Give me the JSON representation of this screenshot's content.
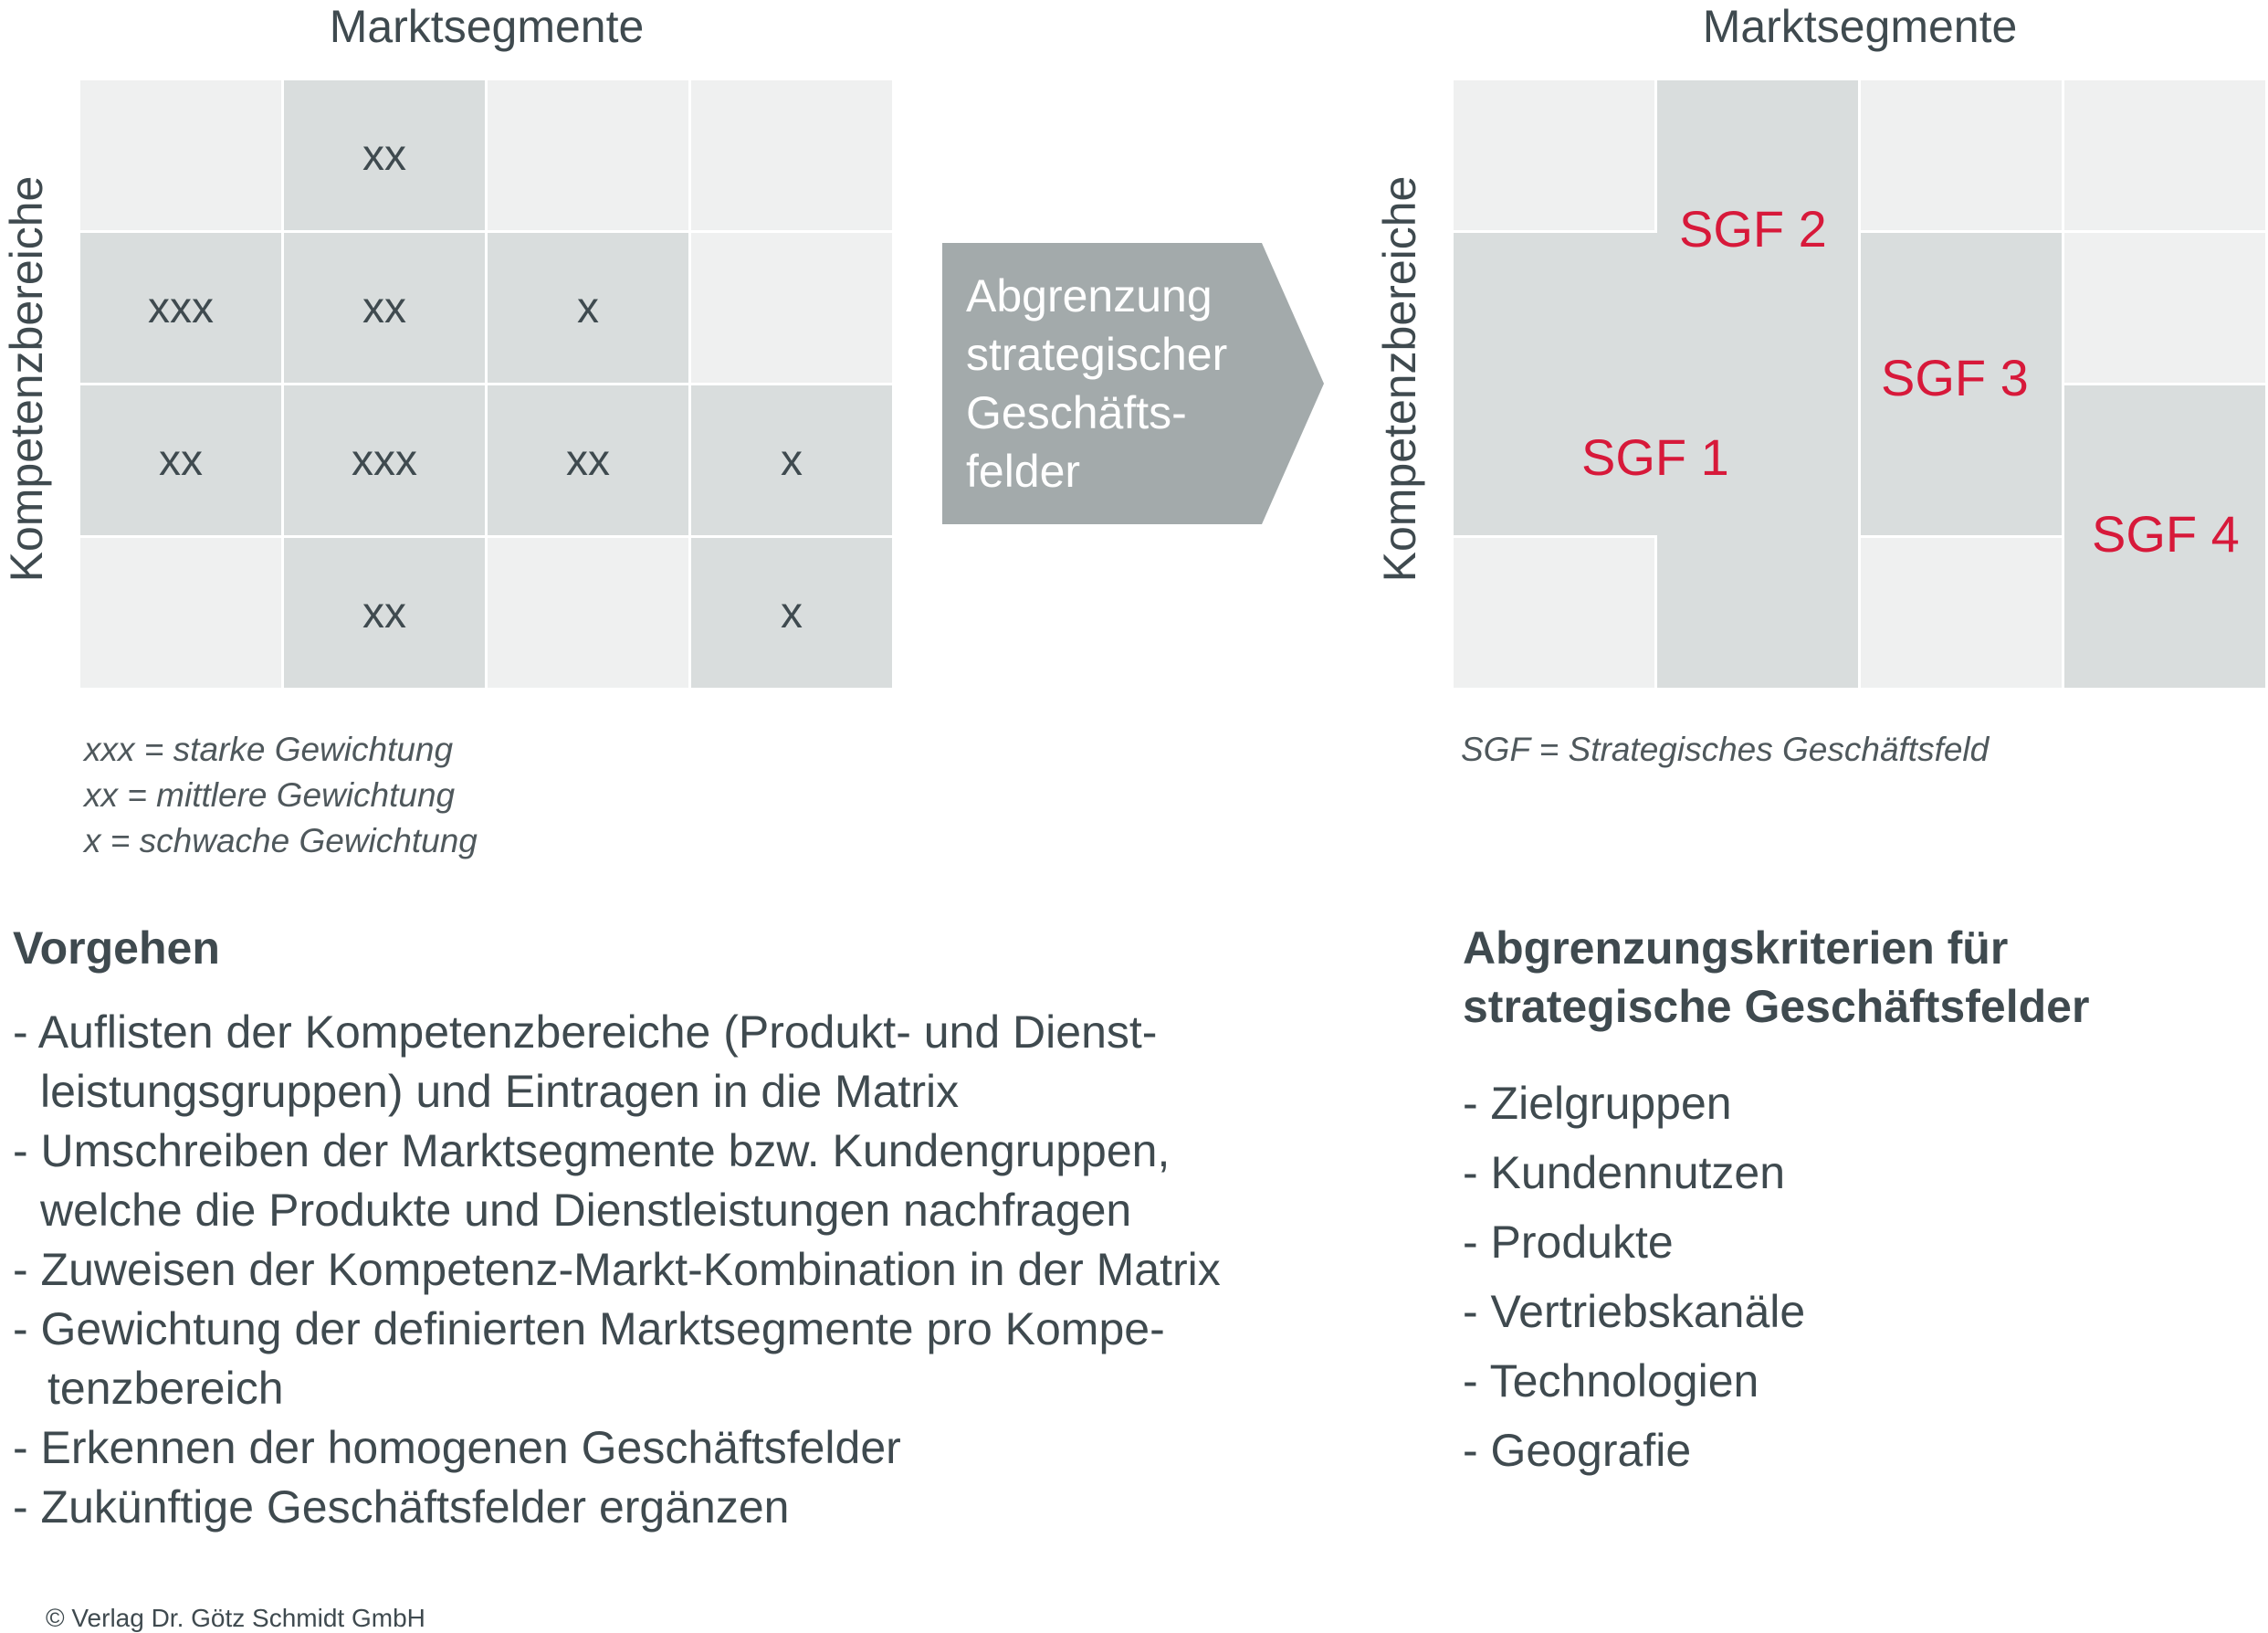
{
  "left_matrix": {
    "top_axis": "Marktsegmente",
    "left_axis": "Kompetenzbereiche",
    "cells": [
      [
        "",
        "xx",
        "",
        ""
      ],
      [
        "xxx",
        "xx",
        "x",
        ""
      ],
      [
        "xx",
        "xxx",
        "xx",
        "x"
      ],
      [
        "",
        "xx",
        "",
        "x"
      ]
    ],
    "legend": [
      "xxx = starke Gewichtung",
      "xx = mittlere Gewichtung",
      "x = schwache Gewichtung"
    ]
  },
  "arrow": {
    "lines": [
      "Abgrenzung",
      "strategischer",
      "Geschäfts-",
      "felder"
    ]
  },
  "right_matrix": {
    "top_axis": "Marktsegmente",
    "left_axis": "Kompetenzbereiche",
    "sgf_labels": [
      "SGF 1",
      "SGF 2",
      "SGF 3",
      "SGF 4"
    ],
    "legend": "SGF = Strategisches Geschäftsfeld"
  },
  "procedure": {
    "heading": "Vorgehen",
    "lines": [
      "- Auflisten der Kompetenzbereiche (Produkt- und Dienst-",
      "  leistungsgruppen) und Eintragen in die Matrix",
      "- Umschreiben der Marktsegmente bzw. Kundengruppen,",
      "  welche die Produkte und Dienstleistungen nachfragen",
      "- Zuweisen der Kompetenz-Markt-Kombination in der Matrix",
      "- Gewichtung der definierten Marktsegmente pro Kompe-",
      "   tenzbereich",
      "- Erkennen der homogenen Geschäftsfelder",
      "- Zukünftige Geschäftsfelder ergänzen"
    ]
  },
  "criteria": {
    "heading_line1": "Abgrenzungskriterien für",
    "heading_line2": "strategische Geschäftsfelder",
    "items": [
      "- Zielgruppen",
      "- Kundennutzen",
      "- Produkte",
      "- Vertriebskanäle",
      "- Technologien",
      "- Geografie"
    ]
  },
  "copyright": "© Verlag Dr. Götz Schmidt GmbH"
}
